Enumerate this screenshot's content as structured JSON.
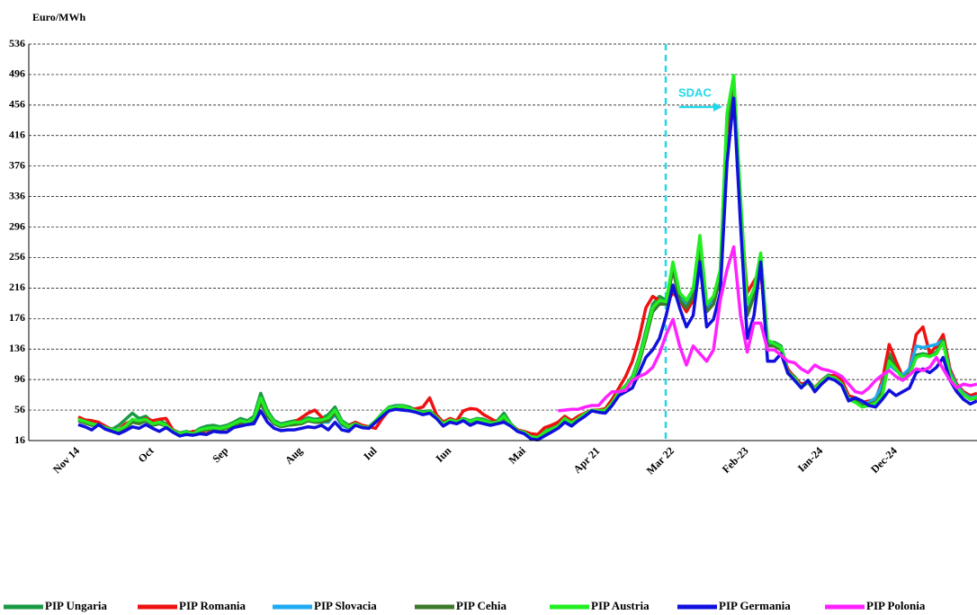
{
  "chart_data": {
    "type": "line",
    "y_label": "Euro/MWh",
    "annotation": "SDAC",
    "categories": [
      "Nov 14",
      null,
      null,
      null,
      null,
      null,
      null,
      null,
      null,
      null,
      null,
      "Oct",
      null,
      null,
      null,
      null,
      null,
      null,
      null,
      null,
      null,
      null,
      "Sep",
      null,
      null,
      null,
      null,
      null,
      null,
      null,
      null,
      null,
      null,
      "Aug",
      null,
      null,
      null,
      null,
      null,
      null,
      null,
      null,
      null,
      null,
      "Iul",
      null,
      null,
      null,
      null,
      null,
      null,
      null,
      null,
      null,
      null,
      "Iun",
      null,
      null,
      null,
      null,
      null,
      null,
      null,
      null,
      null,
      null,
      "Mai",
      null,
      null,
      null,
      null,
      null,
      null,
      null,
      null,
      null,
      null,
      "Apr 21",
      null,
      null,
      null,
      null,
      null,
      null,
      null,
      null,
      null,
      null,
      "Mar 22",
      null,
      null,
      null,
      null,
      null,
      null,
      null,
      null,
      null,
      null,
      "Feb-23",
      null,
      null,
      null,
      null,
      null,
      null,
      null,
      null,
      null,
      null,
      "Ian-24",
      null,
      null,
      null,
      null,
      null,
      null,
      null,
      null,
      null,
      null,
      "Dec-24",
      null,
      null,
      null,
      null,
      null,
      null,
      null,
      null,
      null,
      null,
      null,
      null
    ],
    "ylim": [
      16,
      536
    ],
    "yticks": [
      16,
      56,
      96,
      136,
      176,
      216,
      256,
      296,
      336,
      376,
      416,
      456,
      496,
      536
    ],
    "grid": true,
    "series": [
      {
        "name": "PIP Ungaria",
        "color": "#1a9a45",
        "values": [
          46,
          43,
          42,
          37,
          34,
          31,
          36,
          44,
          52,
          45,
          48,
          40,
          42,
          38,
          30,
          26,
          28,
          26,
          32,
          35,
          36,
          34,
          36,
          40,
          45,
          42,
          48,
          78,
          55,
          42,
          38,
          40,
          42,
          42,
          46,
          44,
          45,
          50,
          60,
          42,
          36,
          40,
          35,
          34,
          42,
          52,
          60,
          62,
          62,
          60,
          56,
          54,
          55,
          48,
          40,
          44,
          42,
          45,
          42,
          45,
          44,
          40,
          42,
          52,
          38,
          30,
          27,
          22,
          20,
          28,
          32,
          36,
          46,
          40,
          46,
          52,
          56,
          55,
          56,
          66,
          80,
          88,
          100,
          125,
          160,
          195,
          205,
          200,
          245,
          205,
          195,
          210,
          280,
          190,
          200,
          235,
          440,
          490,
          330,
          190,
          210,
          260,
          145,
          145,
          140,
          108,
          100,
          88,
          95,
          85,
          95,
          102,
          100,
          92,
          72,
          70,
          62,
          65,
          68,
          85,
          130,
          115,
          100,
          105,
          128,
          130,
          128,
          132,
          150,
          105,
          88,
          78,
          72,
          74
        ]
      },
      {
        "name": "PIP Romania",
        "color": "#ee1111",
        "values": [
          47,
          43,
          42,
          40,
          35,
          30,
          30,
          38,
          42,
          41,
          45,
          42,
          44,
          45,
          30,
          25,
          25,
          28,
          27,
          25,
          30,
          32,
          32,
          35,
          38,
          40,
          42,
          70,
          50,
          40,
          35,
          38,
          40,
          46,
          52,
          56,
          47,
          40,
          55,
          38,
          35,
          40,
          36,
          34,
          32,
          45,
          56,
          58,
          57,
          56,
          58,
          60,
          72,
          50,
          40,
          45,
          42,
          55,
          58,
          57,
          50,
          45,
          40,
          42,
          36,
          30,
          28,
          25,
          24,
          33,
          36,
          40,
          48,
          42,
          48,
          52,
          56,
          56,
          58,
          70,
          85,
          100,
          120,
          150,
          190,
          205,
          200,
          195,
          210,
          200,
          185,
          200,
          270,
          185,
          195,
          230,
          420,
          470,
          320,
          210,
          225,
          240,
          140,
          142,
          135,
          110,
          98,
          90,
          92,
          85,
          95,
          100,
          102,
          95,
          75,
          72,
          66,
          68,
          70,
          95,
          142,
          120,
          100,
          110,
          155,
          165,
          130,
          140,
          155,
          110,
          90,
          80,
          75,
          78
        ]
      },
      {
        "name": "PIP Slovacia",
        "color": "#1eaaf0",
        "values": [
          43,
          40,
          37,
          37,
          33,
          30,
          29,
          34,
          41,
          39,
          43,
          37,
          39,
          35,
          28,
          24,
          26,
          24,
          29,
          31,
          32,
          31,
          33,
          37,
          41,
          39,
          43,
          68,
          50,
          39,
          35,
          37,
          38,
          38,
          42,
          40,
          40,
          40,
          50,
          36,
          32,
          37,
          34,
          33,
          41,
          50,
          58,
          61,
          60,
          58,
          55,
          52,
          53,
          46,
          37,
          42,
          40,
          43,
          40,
          44,
          41,
          38,
          40,
          45,
          36,
          29,
          26,
          20,
          19,
          26,
          30,
          34,
          44,
          38,
          44,
          50,
          55,
          54,
          55,
          64,
          78,
          85,
          96,
          120,
          152,
          188,
          198,
          196,
          242,
          202,
          192,
          207,
          275,
          188,
          198,
          232,
          435,
          485,
          328,
          185,
          207,
          257,
          142,
          141,
          136,
          105,
          97,
          87,
          93,
          83,
          93,
          100,
          98,
          90,
          71,
          70,
          64,
          66,
          72,
          90,
          115,
          108,
          102,
          110,
          140,
          138,
          140,
          142,
          148,
          106,
          88,
          78,
          72,
          74
        ]
      },
      {
        "name": "PIP Cehia",
        "color": "#3b7a2a",
        "values": [
          42,
          39,
          36,
          37,
          33,
          30,
          28,
          33,
          40,
          38,
          42,
          36,
          38,
          35,
          28,
          24,
          26,
          24,
          28,
          30,
          31,
          30,
          32,
          36,
          40,
          38,
          42,
          65,
          48,
          38,
          34,
          36,
          37,
          38,
          42,
          40,
          40,
          42,
          52,
          38,
          33,
          37,
          34,
          33,
          41,
          50,
          58,
          60,
          59,
          57,
          54,
          52,
          53,
          46,
          37,
          42,
          40,
          44,
          40,
          43,
          42,
          38,
          40,
          46,
          36,
          29,
          26,
          20,
          19,
          26,
          30,
          34,
          44,
          38,
          44,
          50,
          55,
          54,
          55,
          64,
          78,
          85,
          95,
          118,
          150,
          185,
          195,
          195,
          240,
          200,
          190,
          205,
          272,
          185,
          195,
          230,
          430,
          480,
          325,
          180,
          205,
          255,
          140,
          140,
          135,
          104,
          96,
          86,
          92,
          82,
          92,
          100,
          97,
          90,
          70,
          68,
          62,
          64,
          66,
          80,
          125,
          110,
          98,
          104,
          126,
          128,
          127,
          130,
          148,
          103,
          86,
          76,
          70,
          72
        ]
      },
      {
        "name": "PIP Austria",
        "color": "#22ee22",
        "values": [
          44,
          41,
          38,
          36,
          33,
          30,
          30,
          35,
          44,
          42,
          44,
          38,
          40,
          36,
          29,
          25,
          27,
          25,
          30,
          32,
          33,
          32,
          34,
          38,
          42,
          40,
          45,
          72,
          52,
          40,
          36,
          38,
          40,
          40,
          44,
          42,
          43,
          46,
          56,
          40,
          34,
          38,
          34,
          33,
          42,
          51,
          59,
          60,
          61,
          58,
          55,
          52,
          54,
          47,
          38,
          43,
          41,
          44,
          41,
          44,
          42,
          39,
          40,
          48,
          37,
          29,
          27,
          21,
          20,
          27,
          31,
          35,
          45,
          39,
          45,
          51,
          56,
          55,
          56,
          65,
          80,
          87,
          98,
          122,
          155,
          190,
          200,
          198,
          250,
          210,
          200,
          215,
          285,
          195,
          205,
          240,
          445,
          495,
          335,
          195,
          215,
          262,
          148,
          143,
          138,
          106,
          98,
          86,
          93,
          84,
          94,
          100,
          98,
          90,
          70,
          66,
          60,
          62,
          65,
          75,
          120,
          110,
          98,
          102,
          125,
          128,
          126,
          130,
          145,
          102,
          86,
          76,
          70,
          73
        ]
      },
      {
        "name": "PIP Germania",
        "color": "#1010dd",
        "values": [
          37,
          34,
          30,
          37,
          31,
          28,
          25,
          29,
          34,
          32,
          37,
          32,
          28,
          33,
          27,
          22,
          24,
          23,
          25,
          24,
          28,
          27,
          27,
          33,
          35,
          37,
          38,
          55,
          40,
          32,
          29,
          30,
          30,
          32,
          34,
          33,
          36,
          30,
          40,
          30,
          28,
          36,
          33,
          32,
          40,
          48,
          55,
          57,
          56,
          55,
          53,
          50,
          52,
          45,
          35,
          40,
          38,
          42,
          36,
          40,
          38,
          36,
          38,
          40,
          35,
          28,
          25,
          18,
          17,
          22,
          27,
          32,
          40,
          35,
          42,
          48,
          55,
          53,
          52,
          62,
          75,
          80,
          85,
          105,
          125,
          135,
          150,
          180,
          220,
          190,
          165,
          180,
          250,
          165,
          175,
          210,
          380,
          465,
          300,
          150,
          180,
          250,
          120,
          120,
          130,
          105,
          95,
          85,
          95,
          80,
          90,
          98,
          95,
          88,
          68,
          72,
          68,
          62,
          60,
          70,
          82,
          75,
          80,
          85,
          105,
          110,
          105,
          112,
          125,
          95,
          80,
          70,
          64,
          68
        ]
      },
      {
        "name": "PIP Polonia",
        "color": "#ff22ff",
        "values": [
          null,
          null,
          null,
          null,
          null,
          null,
          null,
          null,
          null,
          null,
          null,
          null,
          null,
          null,
          null,
          null,
          null,
          null,
          null,
          null,
          null,
          null,
          null,
          null,
          null,
          null,
          null,
          null,
          null,
          null,
          null,
          null,
          null,
          null,
          null,
          null,
          null,
          null,
          null,
          null,
          null,
          null,
          null,
          null,
          null,
          null,
          null,
          null,
          null,
          null,
          null,
          null,
          null,
          null,
          null,
          null,
          null,
          null,
          null,
          null,
          null,
          null,
          null,
          null,
          null,
          null,
          null,
          null,
          null,
          null,
          null,
          55,
          56,
          57,
          57,
          60,
          62,
          62,
          72,
          80,
          80,
          82,
          95,
          100,
          104,
          112,
          130,
          155,
          175,
          140,
          115,
          140,
          130,
          120,
          135,
          200,
          240,
          270,
          180,
          132,
          170,
          170,
          135,
          135,
          128,
          120,
          118,
          110,
          105,
          115,
          110,
          108,
          105,
          100,
          90,
          80,
          78,
          85,
          95,
          102,
          108,
          100,
          95,
          102,
          110,
          108,
          112,
          125,
          110,
          95,
          85,
          90,
          88,
          90
        ]
      }
    ]
  }
}
